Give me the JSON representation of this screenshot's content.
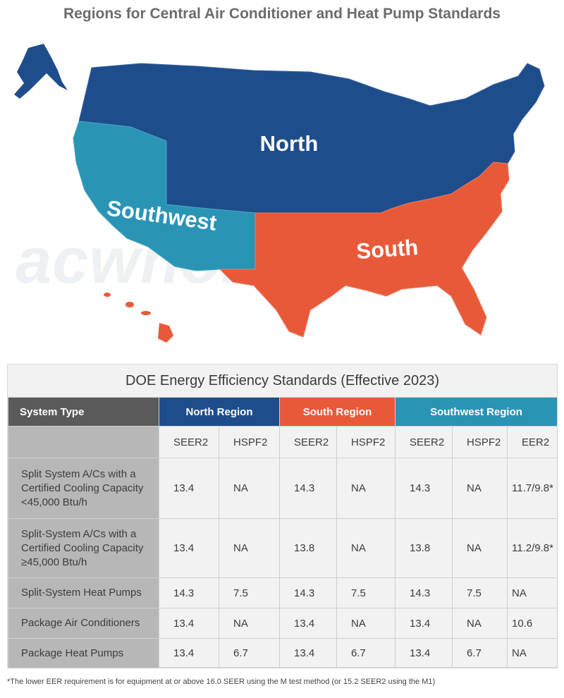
{
  "title": "Regions for Central Air Conditioner and Heat Pump Standards",
  "watermark": "acwholesalers",
  "map": {
    "regions": [
      {
        "name": "North",
        "color": "#1e4d8c"
      },
      {
        "name": "Southwest",
        "color": "#2a94b5"
      },
      {
        "name": "South",
        "color": "#e8593a"
      }
    ]
  },
  "table": {
    "title": "DOE Energy Efficiency Standards (Effective 2023)",
    "headers": {
      "system_type": "System Type",
      "north": "North Region",
      "south": "South Region",
      "southwest": "Southwest Region"
    },
    "subheaders": [
      "SEER2",
      "HSPF2",
      "SEER2",
      "HSPF2",
      "SEER2",
      "HSPF2",
      "EER2"
    ],
    "rows": [
      {
        "label": "Split System A/Cs with a Certified Cooling Capacity <45,000 Btu/h",
        "values": [
          "13.4",
          "NA",
          "14.3",
          "NA",
          "14.3",
          "NA",
          "11.7/9.8*"
        ]
      },
      {
        "label": "Split-System A/Cs with a Certified Cooling Capacity ≥45,000 Btu/h",
        "values": [
          "13.4",
          "NA",
          "13.8",
          "NA",
          "13.8",
          "NA",
          "11.2/9.8*"
        ]
      },
      {
        "label": "Split-System Heat Pumps",
        "values": [
          "14.3",
          "7.5",
          "14.3",
          "7.5",
          "14.3",
          "7.5",
          "NA"
        ]
      },
      {
        "label": "Package Air Conditioners",
        "values": [
          "13.4",
          "NA",
          "13.4",
          "NA",
          "13.4",
          "NA",
          "10.6"
        ]
      },
      {
        "label": "Package Heat Pumps",
        "values": [
          "13.4",
          "6.7",
          "13.4",
          "6.7",
          "13.4",
          "6.7",
          "NA"
        ]
      }
    ]
  },
  "footnote": "*The lower EER requirement is for equipment at or above 16.0 SEER using the M test method (or 15.2 SEER2 using the M1)"
}
